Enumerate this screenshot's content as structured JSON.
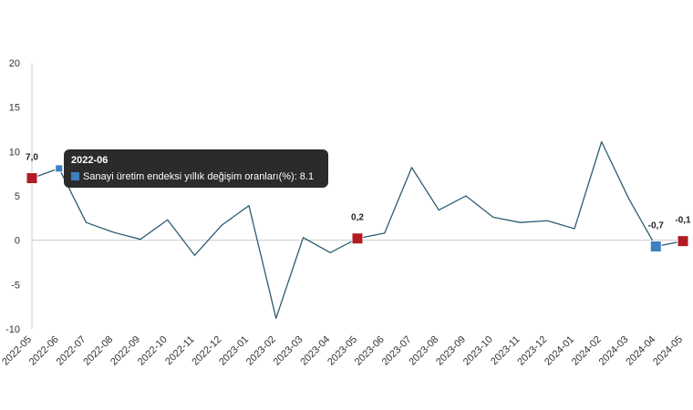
{
  "chart_data": {
    "type": "line",
    "categories": [
      "2022-05",
      "2022-06",
      "2022-07",
      "2022-08",
      "2022-09",
      "2022-10",
      "2022-11",
      "2022-12",
      "2023-01",
      "2023-02",
      "2023-03",
      "2023-04",
      "2023-05",
      "2023-06",
      "2023-07",
      "2023-08",
      "2023-09",
      "2023-10",
      "2023-11",
      "2023-12",
      "2024-01",
      "2024-02",
      "2024-03",
      "2024-04",
      "2024-05"
    ],
    "series": [
      {
        "name": "Sanayi üretim endeksi yıllık değişim oranları(%)",
        "values": [
          7.0,
          8.1,
          2.0,
          0.9,
          0.1,
          2.3,
          -1.7,
          1.7,
          3.9,
          -8.8,
          0.3,
          -1.4,
          0.2,
          0.8,
          8.2,
          3.4,
          5.0,
          2.6,
          2.0,
          2.2,
          1.3,
          11.1,
          4.7,
          -0.7,
          -0.1
        ]
      }
    ],
    "ylim": [
      -10,
      20
    ],
    "yticks": [
      -10,
      -5,
      0,
      5,
      10,
      15,
      20
    ],
    "grid": false,
    "legend": "none",
    "annotations": [
      {
        "category": "2022-05",
        "label": "7,0",
        "marker": "red"
      },
      {
        "category": "2023-05",
        "label": "0,2",
        "marker": "red"
      },
      {
        "category": "2024-04",
        "label": "-0,7",
        "marker": "blue"
      },
      {
        "category": "2024-05",
        "label": "-0,1",
        "marker": "red"
      }
    ],
    "tooltip": {
      "category": "2022-06",
      "title": "2022-06",
      "text": "Sanayi üretim endeksi yıllık değişim oranları(%): 8.1"
    },
    "colors": {
      "line": "#2e5c73",
      "marker_red": "#b01c22",
      "marker_blue": "#3d7fbf",
      "axis": "#cccccc"
    }
  }
}
